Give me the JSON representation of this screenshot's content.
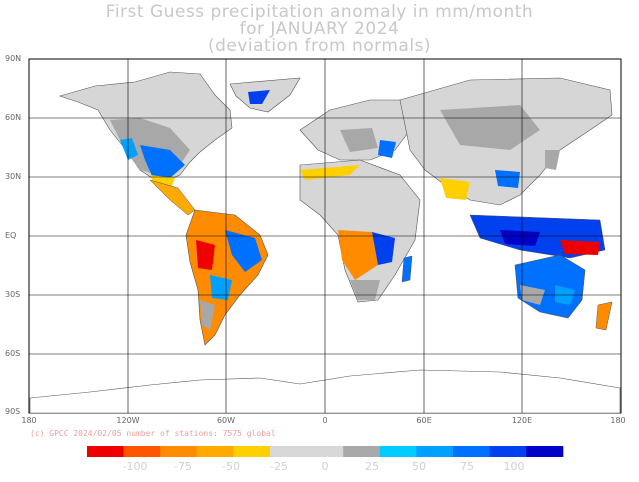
{
  "title": {
    "line1": "First Guess precipitation anomaly in mm/month",
    "line2": "for JANUARY 2024",
    "line3": "(deviation from normals)"
  },
  "map": {
    "lat_labels": [
      "90N",
      "60N",
      "30N",
      "EQ",
      "30S",
      "60S",
      "90S"
    ],
    "lon_labels": [
      "180",
      "120W",
      "60W",
      "0",
      "60E",
      "120E",
      "180"
    ]
  },
  "credit": "(c) GPCC 2024/02/05 number of stations: 7575 global",
  "colorbar": {
    "colors": [
      "#ee0000",
      "#ff5500",
      "#ff8c00",
      "#ffaa00",
      "#ffd000",
      "#d8d8d8",
      "#d8d8d8",
      "#a8a8a8",
      "#00ccff",
      "#00a0ff",
      "#0070ff",
      "#0040ee",
      "#0000c8"
    ],
    "labels": [
      "-100",
      "-75",
      "-50",
      "-25",
      "0",
      "25",
      "50",
      "75",
      "100"
    ]
  }
}
